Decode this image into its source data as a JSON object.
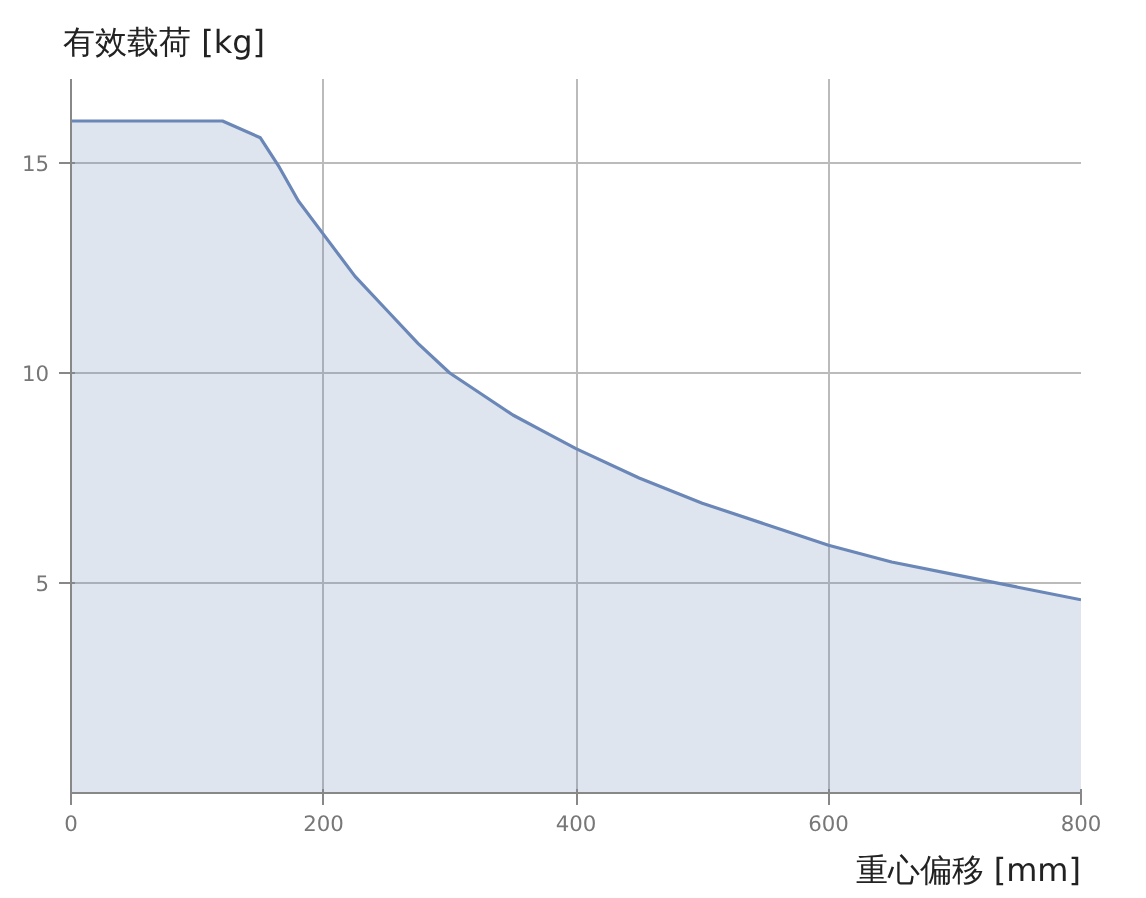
{
  "chart_data": {
    "type": "area",
    "ylabel": "有效载荷 [kg]",
    "xlabel": "重心偏移 [mm]",
    "x": [
      0,
      120,
      150,
      165,
      180,
      200,
      225,
      250,
      275,
      300,
      325,
      350,
      375,
      400,
      450,
      500,
      550,
      600,
      650,
      700,
      750,
      800
    ],
    "series": [
      {
        "color": "#6a87b8",
        "values": [
          16,
          16,
          15.6,
          14.9,
          14.1,
          13.3,
          12.3,
          11.5,
          10.7,
          10.0,
          9.5,
          9.0,
          8.6,
          8.2,
          7.5,
          6.9,
          6.4,
          5.9,
          5.5,
          5.2,
          4.9,
          4.6
        ]
      }
    ],
    "xlim": [
      0,
      800
    ],
    "ylim": [
      0,
      17
    ],
    "xticks": [
      0,
      200,
      400,
      600,
      800
    ],
    "yticks": [
      5,
      10,
      15
    ],
    "grid": true
  }
}
